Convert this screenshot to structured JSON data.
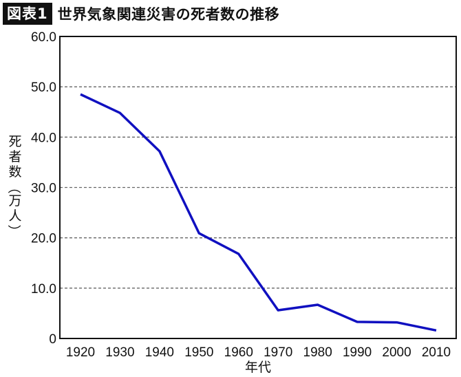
{
  "header": {
    "badge": "図表1",
    "title": "世界気象関連災害の死者数の推移"
  },
  "colors": {
    "line": "#1010c0",
    "grid": "#666666",
    "axis": "#111111"
  },
  "chart_data": {
    "type": "line",
    "title": "世界気象関連災害の死者数の推移",
    "xlabel": "年代",
    "ylabel": "死者数（万人）",
    "categories": [
      "1920",
      "1930",
      "1940",
      "1950",
      "1960",
      "1970",
      "1980",
      "1990",
      "2000",
      "2010"
    ],
    "series": [
      {
        "name": "死者数",
        "values": [
          48.5,
          44.8,
          37.2,
          20.9,
          16.8,
          5.6,
          6.7,
          3.3,
          3.2,
          1.6
        ]
      }
    ],
    "ylim": [
      0,
      60
    ],
    "yticks": [
      "0",
      "10.0",
      "20.0",
      "30.0",
      "40.0",
      "50.0",
      "60.0"
    ],
    "grid": "horizontal dashed",
    "legend": "none"
  }
}
